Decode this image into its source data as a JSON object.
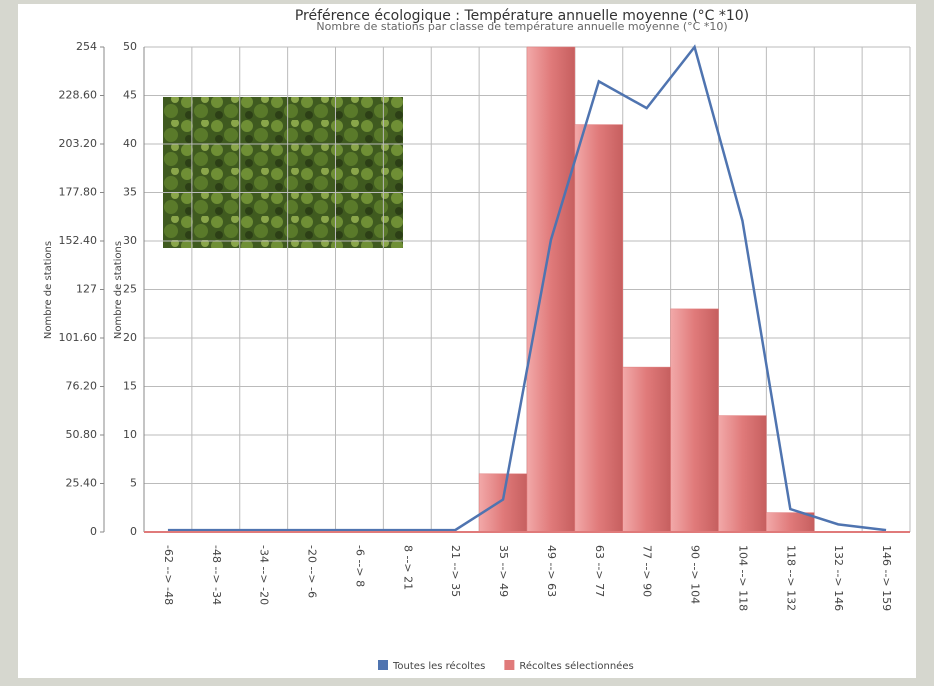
{
  "chart_data": {
    "type": "bar",
    "title": "Préférence écologique : Température annuelle moyenne (°C *10)",
    "subtitle": "Nombre de stations par classe de température annuelle moyenne (°C *10)",
    "ylabel": "Nombre de stations",
    "y2label": "Nombre de stations",
    "categories": [
      "-62 --> -48",
      "-48 --> -34",
      "-34 --> -20",
      "-20 --> -6",
      "-6 --> 8",
      "8 --> 21",
      "21 --> 35",
      "35 --> 49",
      "49 --> 63",
      "63 --> 77",
      "77 --> 90",
      "90 --> 104",
      "104 --> 118",
      "118 --> 132",
      "132 --> 146",
      "146 --> 159"
    ],
    "series": [
      {
        "name": "Toutes les récoltes",
        "type": "line",
        "color": "#4f74b0",
        "values": [
          1,
          1,
          1,
          1,
          1,
          1,
          1,
          17,
          153,
          236,
          222,
          254,
          163,
          12,
          4,
          1
        ]
      },
      {
        "name": "Récoltes sélectionnées",
        "type": "bar",
        "axis": "y2",
        "color": "#e07a7a",
        "values": [
          0,
          0,
          0,
          0,
          0,
          0,
          0,
          6,
          50,
          42,
          17,
          23,
          12,
          2,
          0,
          0
        ]
      }
    ],
    "ylim": [
      0,
      254
    ],
    "yticks": [
      0,
      {
        "value": 25.4,
        "label": "25.40"
      },
      {
        "value": 50.8,
        "label": "50.80"
      },
      {
        "value": 76.2,
        "label": "76.20"
      },
      {
        "value": 101.6,
        "label": "101.60"
      },
      127,
      {
        "value": 152.4,
        "label": "152.40"
      },
      {
        "value": 177.8,
        "label": "177.80"
      },
      {
        "value": 203.2,
        "label": "203.20"
      },
      {
        "value": 228.6,
        "label": "228.60"
      },
      254
    ],
    "y2lim": [
      0,
      50
    ],
    "y2ticks": [
      0,
      5,
      10,
      15,
      20,
      25,
      30,
      35,
      40,
      45,
      50
    ],
    "grid": true,
    "legend": "bottom"
  }
}
